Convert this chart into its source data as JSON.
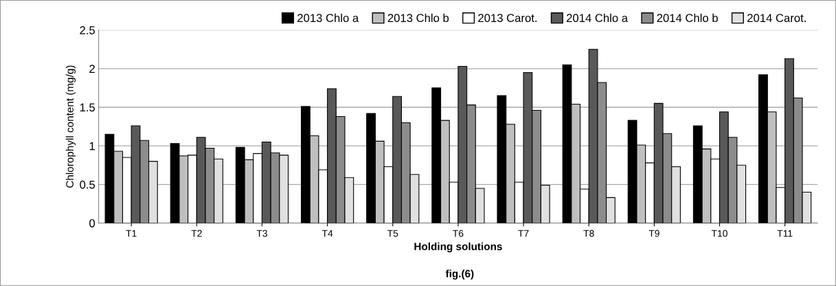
{
  "chart_data": {
    "type": "bar",
    "xlabel": "Holding solutions",
    "ylabel": "Chlorophyll content (mg/g)",
    "annotations": [
      "fig.(6)"
    ],
    "categories": [
      "T1",
      "T2",
      "T3",
      "T4",
      "T5",
      "T6",
      "T7",
      "T8",
      "T9",
      "T10",
      "T11"
    ],
    "series": [
      {
        "name": "2013 Chlo a",
        "color": "#000000",
        "values": [
          1.15,
          1.03,
          0.98,
          1.51,
          1.42,
          1.75,
          1.65,
          2.05,
          1.33,
          1.26,
          1.92
        ]
      },
      {
        "name": "2013 Chlo b",
        "color": "#bfbfbf",
        "values": [
          0.93,
          0.87,
          0.82,
          1.13,
          1.06,
          1.33,
          1.28,
          1.54,
          1.01,
          0.96,
          1.44
        ]
      },
      {
        "name": "2013 Carot.",
        "color": "#ffffff",
        "values": [
          0.85,
          0.88,
          0.9,
          0.69,
          0.73,
          0.53,
          0.53,
          0.44,
          0.78,
          0.83,
          0.46
        ]
      },
      {
        "name": "2014 Chlo a",
        "color": "#595959",
        "values": [
          1.26,
          1.11,
          1.05,
          1.74,
          1.64,
          2.03,
          1.95,
          2.25,
          1.55,
          1.44,
          2.13
        ]
      },
      {
        "name": "2014 Chlo b",
        "color": "#8c8c8c",
        "values": [
          1.07,
          0.97,
          0.91,
          1.38,
          1.3,
          1.53,
          1.46,
          1.82,
          1.16,
          1.11,
          1.62
        ]
      },
      {
        "name": "2014 Carot.",
        "color": "#e0e0e0",
        "values": [
          0.8,
          0.83,
          0.88,
          0.59,
          0.63,
          0.45,
          0.49,
          0.33,
          0.73,
          0.75,
          0.4
        ]
      }
    ],
    "ylim": [
      0,
      2.5
    ],
    "yticks": [
      0,
      0.5,
      1,
      1.5,
      2,
      2.5
    ],
    "grid": "y",
    "legend": "top"
  }
}
